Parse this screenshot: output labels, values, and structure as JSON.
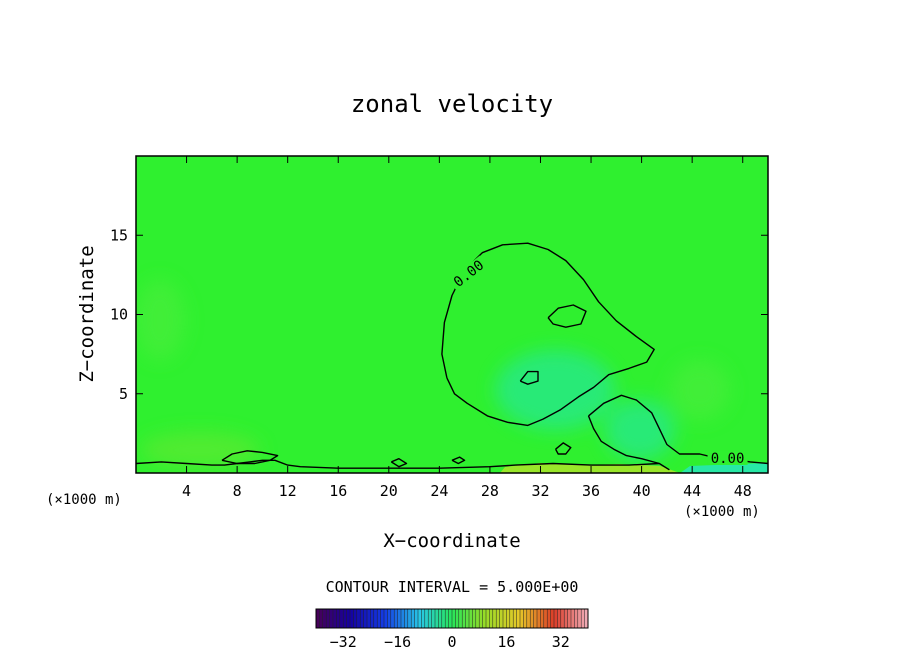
{
  "chart_data": {
    "type": "heatmap",
    "title": "zonal velocity",
    "xlabel": "X−coordinate",
    "ylabel": "Z−coordinate",
    "x_unit": "(×1000 m)",
    "y_unit": "(×1000 m)",
    "xlim": [
      0,
      50
    ],
    "ylim": [
      0,
      20
    ],
    "x_ticks": [
      4,
      8,
      12,
      16,
      20,
      24,
      28,
      32,
      36,
      40,
      44,
      48
    ],
    "y_ticks": [
      5,
      10,
      15
    ],
    "background_value": 0,
    "contour_interval_text": "CONTOUR INTERVAL = 5.000E+00",
    "contours": [
      {
        "level": 0,
        "label": "0.00",
        "points": [
          [
            24.6,
            6.0
          ],
          [
            24.2,
            7.5
          ],
          [
            24.4,
            9.5
          ],
          [
            25.0,
            11.2
          ],
          [
            26.0,
            12.8
          ],
          [
            27.4,
            13.9
          ],
          [
            29.0,
            14.4
          ],
          [
            31.0,
            14.5
          ],
          [
            32.6,
            14.1
          ],
          [
            34.0,
            13.4
          ],
          [
            35.4,
            12.2
          ],
          [
            36.6,
            10.8
          ],
          [
            38.0,
            9.6
          ],
          [
            39.6,
            8.6
          ],
          [
            41.0,
            7.8
          ],
          [
            40.4,
            7.0
          ],
          [
            39.0,
            6.6
          ],
          [
            37.4,
            6.2
          ],
          [
            36.2,
            5.4
          ],
          [
            35.0,
            4.8
          ],
          [
            33.6,
            4.0
          ],
          [
            32.2,
            3.4
          ],
          [
            31.0,
            3.0
          ],
          [
            29.4,
            3.2
          ],
          [
            27.8,
            3.6
          ],
          [
            26.2,
            4.4
          ],
          [
            25.2,
            5.0
          ],
          [
            24.6,
            6.0
          ]
        ]
      },
      {
        "level": 0,
        "label": "",
        "points": [
          [
            32.6,
            9.8
          ],
          [
            33.4,
            10.4
          ],
          [
            34.6,
            10.6
          ],
          [
            35.6,
            10.2
          ],
          [
            35.2,
            9.4
          ],
          [
            34.0,
            9.2
          ],
          [
            33.0,
            9.4
          ],
          [
            32.6,
            9.8
          ]
        ]
      },
      {
        "level": 0,
        "label": "",
        "points": [
          [
            30.4,
            5.8
          ],
          [
            31.0,
            6.4
          ],
          [
            31.8,
            6.4
          ],
          [
            31.8,
            5.8
          ],
          [
            31.0,
            5.6
          ],
          [
            30.4,
            5.8
          ]
        ]
      },
      {
        "level": 0,
        "label": "0.00",
        "points": [
          [
            35.8,
            3.6
          ],
          [
            37.0,
            4.4
          ],
          [
            38.4,
            4.9
          ],
          [
            39.6,
            4.6
          ],
          [
            40.8,
            3.8
          ],
          [
            41.4,
            2.8
          ],
          [
            42.0,
            1.8
          ],
          [
            43.0,
            1.2
          ],
          [
            44.6,
            1.2
          ],
          [
            45.6,
            1.0
          ],
          [
            47.0,
            0.9
          ],
          [
            48.6,
            0.7
          ],
          [
            50,
            0.6
          ]
        ]
      },
      {
        "level": 0,
        "label": "",
        "points": [
          [
            35.8,
            3.6
          ],
          [
            36.2,
            2.8
          ],
          [
            36.8,
            2.0
          ],
          [
            37.8,
            1.5
          ],
          [
            38.8,
            1.1
          ],
          [
            40.0,
            0.9
          ],
          [
            41.4,
            0.6
          ],
          [
            42.2,
            0.2
          ]
        ]
      },
      {
        "level": 0,
        "label": "",
        "points": [
          [
            0,
            0.6
          ],
          [
            2,
            0.7
          ],
          [
            4,
            0.6
          ],
          [
            6,
            0.5
          ],
          [
            7,
            0.5
          ],
          [
            8,
            0.6
          ],
          [
            9,
            0.7
          ],
          [
            10,
            0.8
          ],
          [
            11,
            0.8
          ],
          [
            12,
            0.5
          ],
          [
            13,
            0.4
          ],
          [
            16,
            0.3
          ],
          [
            20,
            0.3
          ],
          [
            24,
            0.3
          ],
          [
            28,
            0.4
          ],
          [
            30,
            0.5
          ],
          [
            33,
            0.6
          ],
          [
            36,
            0.5
          ],
          [
            39,
            0.5
          ],
          [
            41.4,
            0.6
          ]
        ]
      },
      {
        "level": 0,
        "label": "",
        "points": [
          [
            6.8,
            0.8
          ],
          [
            7.6,
            1.2
          ],
          [
            8.8,
            1.4
          ],
          [
            10.0,
            1.3
          ],
          [
            11.2,
            1.1
          ],
          [
            10.6,
            0.8
          ],
          [
            9.4,
            0.6
          ],
          [
            8.0,
            0.6
          ],
          [
            6.8,
            0.8
          ]
        ]
      },
      {
        "level": 0,
        "label": "",
        "points": [
          [
            20.2,
            0.7
          ],
          [
            20.8,
            0.9
          ],
          [
            21.4,
            0.6
          ],
          [
            20.8,
            0.4
          ],
          [
            20.2,
            0.7
          ]
        ]
      },
      {
        "level": 0,
        "label": "",
        "points": [
          [
            25.0,
            0.8
          ],
          [
            25.6,
            1.0
          ],
          [
            26.0,
            0.8
          ],
          [
            25.5,
            0.6
          ],
          [
            25.0,
            0.8
          ]
        ]
      },
      {
        "level": 0,
        "label": "",
        "points": [
          [
            33.2,
            1.5
          ],
          [
            33.8,
            1.9
          ],
          [
            34.4,
            1.6
          ],
          [
            34.0,
            1.2
          ],
          [
            33.4,
            1.2
          ],
          [
            33.2,
            1.5
          ]
        ]
      }
    ],
    "colorbar": {
      "ticks": [
        -32,
        -16,
        0,
        16,
        32
      ],
      "tick_labels": [
        "−32",
        "−16",
        "0",
        "16",
        "32"
      ],
      "min": -40,
      "max": 40
    },
    "colors": {
      "field_green": "#2ff02f",
      "contour": "#000000",
      "near_surface_yellow": "#9ae62a",
      "low_cyan": "#27e88f"
    }
  }
}
